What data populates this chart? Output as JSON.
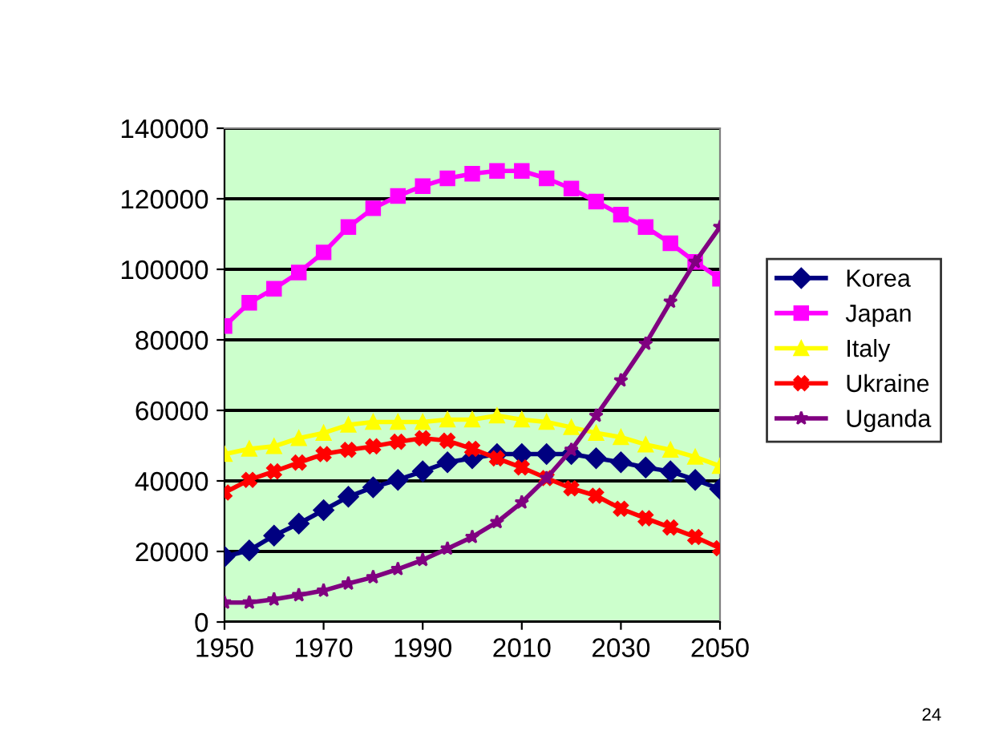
{
  "chart_data": {
    "type": "line",
    "x": [
      1950,
      1955,
      1960,
      1965,
      1970,
      1975,
      1980,
      1985,
      1990,
      1995,
      2000,
      2005,
      2010,
      2015,
      2020,
      2025,
      2030,
      2035,
      2040,
      2045,
      2050
    ],
    "series": [
      {
        "name": "Korea",
        "color": "#000080",
        "marker": "diamond",
        "values": [
          18500,
          20300,
          24500,
          27900,
          31700,
          35500,
          38200,
          40300,
          42700,
          45300,
          46400,
          47600,
          47600,
          47600,
          47600,
          46400,
          45300,
          43800,
          42700,
          40300,
          37700
        ]
      },
      {
        "name": "Japan",
        "color": "#ff00ff",
        "marker": "square",
        "values": [
          83900,
          90500,
          94500,
          99100,
          104800,
          112000,
          117300,
          120800,
          123600,
          125800,
          127100,
          127900,
          127900,
          125800,
          122900,
          119200,
          115500,
          112000,
          107400,
          102100,
          97300
        ]
      },
      {
        "name": "Italy",
        "color": "#ffff00",
        "marker": "triangle",
        "values": [
          47600,
          49100,
          49800,
          52100,
          53600,
          55900,
          56700,
          56700,
          56700,
          57400,
          57400,
          58500,
          57400,
          56700,
          55200,
          53600,
          52400,
          50300,
          48800,
          46800,
          44200
        ]
      },
      {
        "name": "Ukraine",
        "color": "#ff0000",
        "marker": "cross",
        "values": [
          36700,
          40300,
          42700,
          45200,
          47600,
          48800,
          49800,
          51100,
          52100,
          51400,
          49100,
          46400,
          43800,
          40800,
          37900,
          35800,
          32100,
          29400,
          26800,
          24100,
          20900
        ]
      },
      {
        "name": "Uganda",
        "color": "#800080",
        "marker": "star",
        "values": [
          5500,
          5500,
          6400,
          7600,
          8900,
          10900,
          12700,
          15000,
          17600,
          20800,
          24100,
          28300,
          33900,
          40800,
          48800,
          58500,
          68500,
          78900,
          90800,
          102100,
          112000
        ]
      }
    ],
    "xlim": [
      1950,
      2050
    ],
    "xticks": [
      1950,
      1970,
      1990,
      2010,
      2030,
      2050
    ],
    "ylim": [
      0,
      140000
    ],
    "yticks": [
      0,
      20000,
      40000,
      60000,
      80000,
      100000,
      120000,
      140000
    ],
    "grid": "y",
    "legend": "right",
    "annotations": [
      "24"
    ]
  }
}
